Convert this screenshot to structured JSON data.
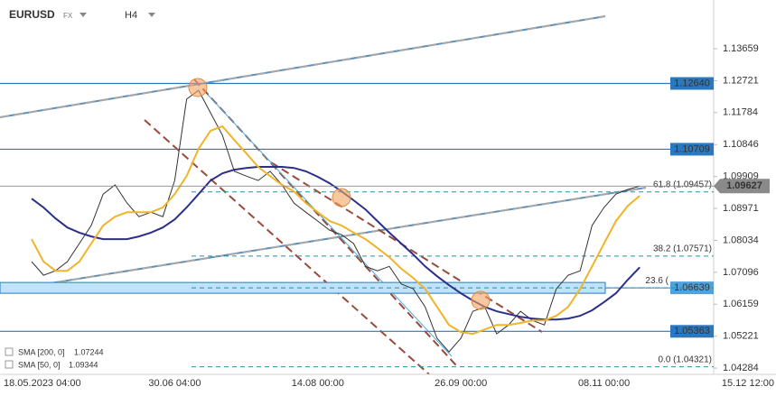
{
  "chart_data": {
    "type": "line",
    "symbol": "EURUSD",
    "market": "FX",
    "timeframe": "H4",
    "categories": [
      "18.05.2023 04:00",
      null,
      null,
      null,
      null,
      null,
      null,
      null,
      null,
      null,
      null,
      null,
      "30.06 04:00",
      null,
      null,
      null,
      null,
      null,
      null,
      null,
      null,
      null,
      null,
      null,
      "14.08 00:00",
      null,
      null,
      null,
      null,
      null,
      null,
      null,
      null,
      null,
      null,
      null,
      "26.09 00:00",
      null,
      null,
      null,
      null,
      null,
      null,
      null,
      null,
      null,
      null,
      null,
      "08.11 00:00",
      null,
      null,
      null,
      null,
      null,
      null,
      null,
      null,
      null,
      null,
      null,
      "15.12 12:00"
    ],
    "series": [
      {
        "color": "#333333",
        "values": [
          1.0741,
          1.0701,
          1.0714,
          1.0741,
          1.0794,
          1.0847,
          1.0939,
          1.0966,
          1.0913,
          1.0873,
          1.0886,
          1.0873,
          1.0979,
          1.1218,
          1.1244,
          1.1178,
          1.1112,
          1.1006,
          1.0992,
          1.0979,
          1.1006,
          1.0966,
          1.0913,
          1.0886,
          1.086,
          1.0833,
          1.082,
          1.0794,
          1.0727,
          1.0714,
          1.0727,
          1.0675,
          1.0661,
          1.0608,
          1.0516,
          1.0476,
          1.0516,
          1.0595,
          1.0608,
          1.0529,
          1.0555,
          1.0595,
          1.0568,
          1.0555,
          1.0661,
          1.0701,
          1.0714,
          1.0847,
          1.09,
          1.0939,
          1.0953,
          1.09627,
          null,
          null,
          null,
          null,
          null,
          null,
          null,
          null,
          null
        ]
      },
      {
        "name": "SMA [200, 0]",
        "color": "#2b2f8a",
        "values": [
          1.0926,
          1.09,
          1.0868,
          1.0841,
          1.0826,
          1.0815,
          1.0807,
          1.0807,
          1.0807,
          1.0815,
          1.0826,
          1.0841,
          1.0865,
          1.09,
          1.0939,
          1.0979,
          1.1,
          1.1011,
          1.1016,
          1.1019,
          1.1019,
          1.1019,
          1.1016,
          1.1006,
          1.099,
          1.0971,
          1.0947,
          1.0921,
          1.0894,
          1.086,
          1.0826,
          1.0794,
          1.0762,
          1.0727,
          1.0698,
          1.0672,
          1.0648,
          1.0627,
          1.0608,
          1.0595,
          1.0587,
          1.0579,
          1.0574,
          1.0571,
          1.0571,
          1.0574,
          1.0582,
          1.0598,
          1.0622,
          1.0648,
          1.0688,
          1.07244,
          null,
          null,
          null,
          null,
          null,
          null,
          null,
          null,
          null
        ]
      },
      {
        "name": "SMA [50, 0]",
        "color": "#f0b429",
        "values": [
          1.0807,
          1.0741,
          1.0714,
          1.0714,
          1.0741,
          1.0794,
          1.0847,
          1.0873,
          1.0886,
          1.0886,
          1.0886,
          1.09,
          1.0939,
          1.0992,
          1.1072,
          1.1125,
          1.1138,
          1.1098,
          1.1059,
          1.1019,
          1.0992,
          1.0966,
          1.0947,
          1.0913,
          1.0886,
          1.086,
          1.0847,
          1.0826,
          1.0807,
          1.0781,
          1.0754,
          1.072,
          1.0693,
          1.0661,
          1.0608,
          1.0555,
          1.0534,
          1.0529,
          1.0542,
          1.0555,
          1.0555,
          1.0561,
          1.0568,
          1.0568,
          1.0582,
          1.0608,
          1.0661,
          1.0727,
          1.0794,
          1.086,
          1.0905,
          1.09344,
          null,
          null,
          null,
          null,
          null,
          null,
          null,
          null,
          null
        ]
      }
    ],
    "ylim": [
      1.041,
      1.1509
    ],
    "yticks": [
      1.13659,
      1.12721,
      1.11784,
      1.10846,
      1.09909,
      1.08971,
      1.08034,
      1.07096,
      1.06159,
      1.05221,
      1.04284
    ],
    "levels": [
      {
        "value": 1.1264,
        "label": "1.12640"
      },
      1.10709,
      1.05363
    ],
    "zone": 1.06639,
    "fib_levels": [
      {
        "value": 1.09457,
        "label": "61.8 (1.09457)"
      },
      {
        "value": 1.07571,
        "label": "38.2 (1.07571)"
      },
      {
        "value": 1.06639,
        "label": "23.6 ("
      },
      {
        "value": 1.04321,
        "label": "0.0 (1.04321)"
      }
    ],
    "level_color": "#2a78c0",
    "fib_color": "#2a8ea8"
  }
}
